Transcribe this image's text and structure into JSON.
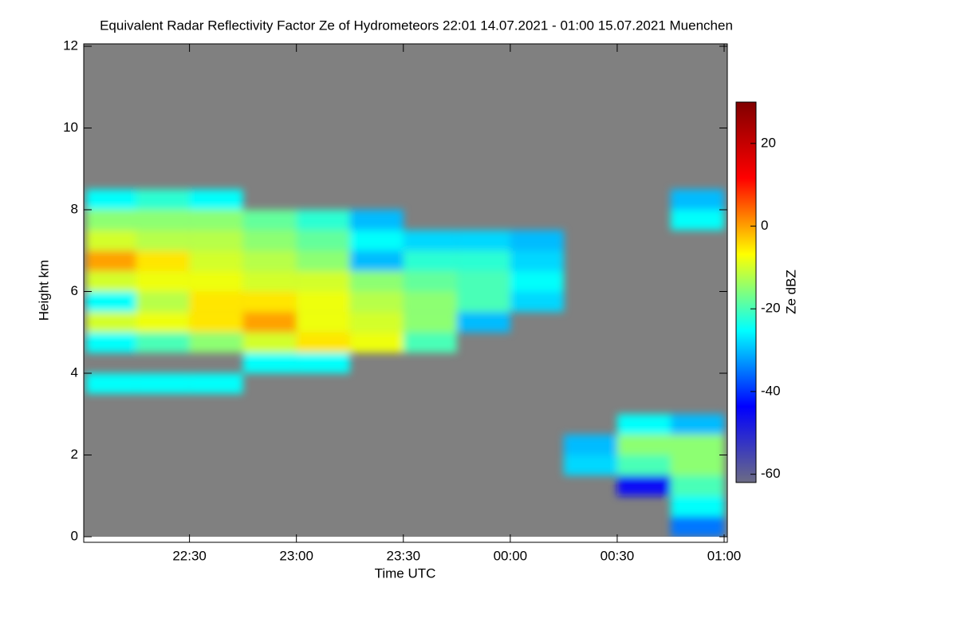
{
  "chart_data": {
    "type": "heatmap",
    "title": "Equivalent Radar Reflectivity Factor Ze of Hydrometeors   22:01 14.07.2021 - 01:00 15.07.2021 Muenchen",
    "x_label": "Time UTC",
    "y_label": "Height km",
    "colorbar_label": "Ze dBZ",
    "xlim": [
      1,
      180
    ],
    "xticks": [
      {
        "value": 30,
        "label": "22:30"
      },
      {
        "value": 60,
        "label": "23:00"
      },
      {
        "value": 90,
        "label": "23:30"
      },
      {
        "value": 120,
        "label": "00:00"
      },
      {
        "value": 150,
        "label": "00:30"
      },
      {
        "value": 180,
        "label": "01:00"
      }
    ],
    "ylim": [
      0,
      12
    ],
    "yticks": [
      0,
      2,
      4,
      6,
      8,
      10,
      12
    ],
    "zlim": [
      -62,
      30
    ],
    "zticks": [
      20,
      0,
      -20,
      -40,
      -60
    ],
    "background_color": "#808080",
    "colormap": [
      "#6c6c84",
      "#0000ff",
      "#00ffff",
      "#ffff00",
      "#ff0000",
      "#800000"
    ],
    "x_bins": [
      1,
      15,
      30,
      45,
      60,
      75,
      90,
      105,
      120,
      135,
      150,
      165,
      180
    ],
    "y_bins": [
      0,
      0.5,
      1,
      1.5,
      2,
      2.5,
      3,
      3.5,
      4,
      4.5,
      5,
      5.5,
      6,
      6.5,
      7,
      7.5,
      8,
      8.5,
      9,
      9.5,
      10,
      10.5,
      11,
      11.5,
      12
    ],
    "z": [
      [
        null,
        null,
        null,
        null,
        null,
        null,
        null,
        null,
        null,
        null,
        null,
        -35
      ],
      [
        null,
        null,
        null,
        null,
        null,
        null,
        null,
        null,
        null,
        null,
        null,
        -25
      ],
      [
        null,
        null,
        null,
        null,
        null,
        null,
        null,
        null,
        null,
        null,
        -45,
        -20
      ],
      [
        null,
        null,
        null,
        null,
        null,
        null,
        null,
        null,
        null,
        -28,
        -20,
        -15
      ],
      [
        null,
        null,
        null,
        null,
        null,
        null,
        null,
        null,
        null,
        -30,
        -15,
        -15
      ],
      [
        null,
        null,
        null,
        null,
        null,
        null,
        null,
        null,
        null,
        null,
        -25,
        -30
      ],
      [
        null,
        null,
        null,
        null,
        null,
        null,
        null,
        null,
        null,
        null,
        null,
        null
      ],
      [
        -25,
        -25,
        -25,
        null,
        null,
        null,
        null,
        null,
        null,
        null,
        null,
        null
      ],
      [
        null,
        null,
        null,
        -25,
        -25,
        null,
        null,
        null,
        null,
        null,
        null,
        null
      ],
      [
        -25,
        -20,
        -15,
        -10,
        -5,
        -8,
        -20,
        null,
        null,
        null,
        null,
        null
      ],
      [
        -10,
        -8,
        -5,
        0,
        -8,
        -10,
        -15,
        -30,
        null,
        null,
        null,
        null
      ],
      [
        -25,
        -12,
        -5,
        -5,
        -8,
        -12,
        -15,
        -20,
        -28,
        null,
        null,
        null
      ],
      [
        -10,
        -8,
        -8,
        -10,
        -10,
        -15,
        -18,
        -20,
        -25,
        null,
        null,
        null
      ],
      [
        0,
        -5,
        -10,
        -12,
        -15,
        -30,
        -22,
        -22,
        -28,
        null,
        null,
        null
      ],
      [
        -10,
        -12,
        -12,
        -15,
        -18,
        -25,
        -28,
        -28,
        -30,
        null,
        null,
        null
      ],
      [
        -15,
        -15,
        -15,
        -18,
        -22,
        -30,
        null,
        null,
        null,
        null,
        null,
        -25
      ],
      [
        -25,
        -22,
        -25,
        null,
        null,
        null,
        null,
        null,
        null,
        null,
        null,
        -30
      ],
      [
        null,
        null,
        null,
        null,
        null,
        null,
        null,
        null,
        null,
        null,
        null,
        null
      ],
      [
        null,
        null,
        null,
        null,
        null,
        null,
        null,
        null,
        null,
        null,
        null,
        null
      ],
      [
        null,
        null,
        null,
        null,
        null,
        null,
        null,
        null,
        null,
        null,
        null,
        null
      ],
      [
        null,
        null,
        null,
        null,
        null,
        null,
        null,
        null,
        null,
        null,
        null,
        null
      ],
      [
        null,
        null,
        null,
        null,
        null,
        null,
        null,
        null,
        null,
        null,
        null,
        null
      ],
      [
        null,
        null,
        null,
        null,
        null,
        null,
        null,
        null,
        null,
        null,
        null,
        null
      ],
      [
        null,
        null,
        null,
        null,
        null,
        null,
        null,
        null,
        null,
        null,
        null,
        null
      ]
    ]
  }
}
